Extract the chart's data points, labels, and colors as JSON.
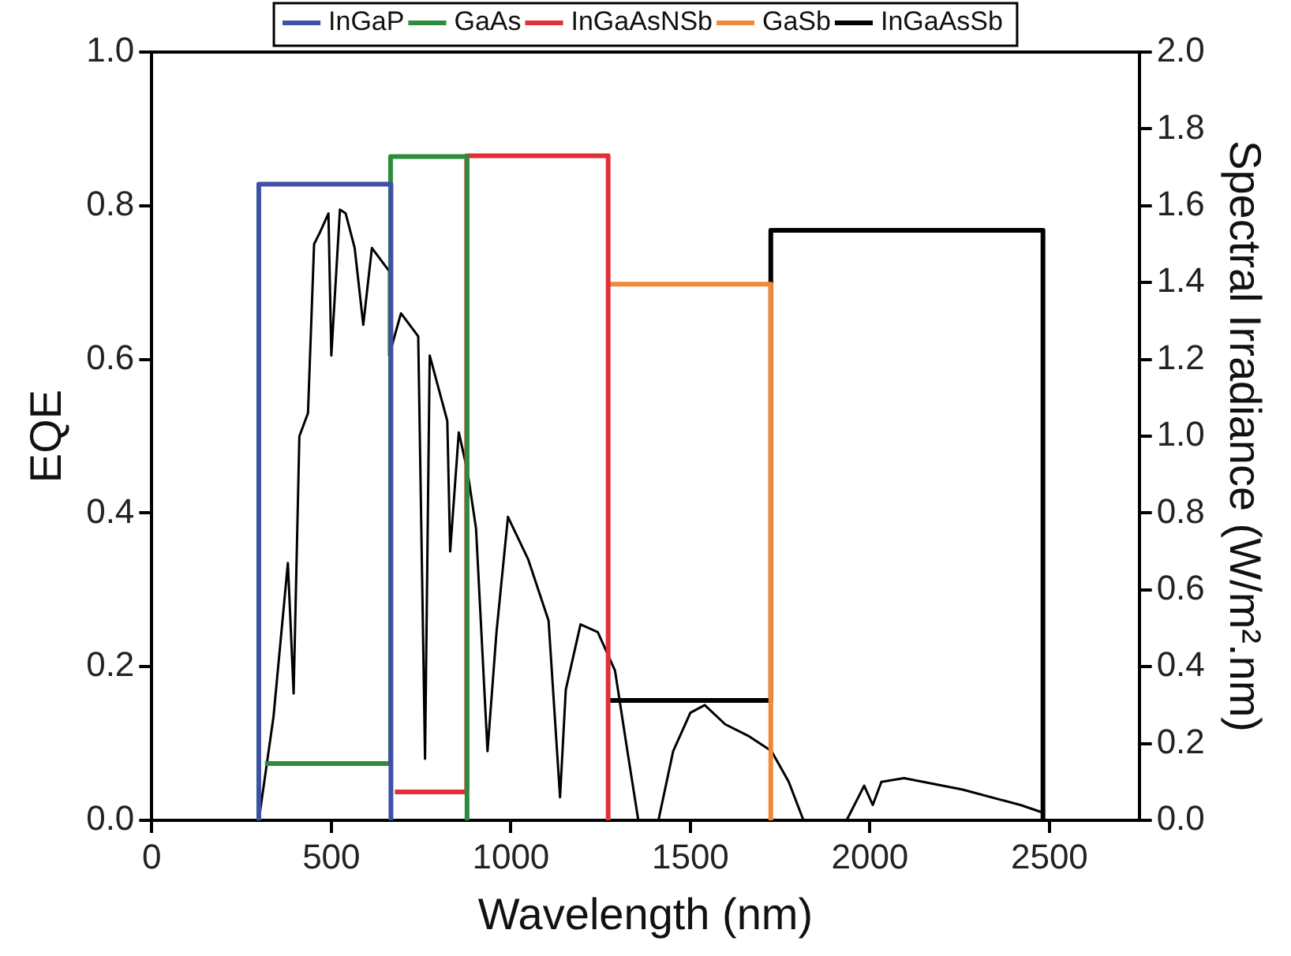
{
  "chart_data": {
    "type": "line",
    "xlabel": "Wavelength (nm)",
    "ylabel": "EQE",
    "y2label": "Spectral Irradiance (W/m².nm)",
    "legend": "top",
    "marker": "none",
    "xlim": [
      0,
      2750
    ],
    "xticks": [
      0,
      500,
      1000,
      1500,
      2000,
      2500
    ],
    "ylim": [
      0,
      1
    ],
    "yticks": [
      {
        "value": 0,
        "label": "0.0"
      },
      0.2,
      0.4,
      0.6,
      0.8,
      {
        "value": 1,
        "label": "1.0"
      }
    ],
    "y2lim": [
      0,
      2
    ],
    "y2ticks": [
      {
        "value": 0,
        "label": "0.0"
      },
      0.2,
      0.4,
      0.6,
      0.8,
      {
        "value": 1,
        "label": "1.0"
      },
      1.2,
      1.4,
      1.6,
      1.8,
      {
        "value": 2,
        "label": "2.0"
      }
    ],
    "series": [
      {
        "axis": "y2",
        "color": "#000000",
        "x": [
          298,
          339,
          379,
          395,
          411,
          435,
          452,
          468,
          492,
          500,
          524,
          540,
          565,
          589,
          613,
          661,
          661,
          694,
          742,
          761,
          774,
          823,
          831,
          855,
          879,
          903,
          935,
          960,
          992,
          1048,
          1105,
          1137,
          1153,
          1194,
          1242,
          1290,
          1323,
          1355,
          1411,
          1452,
          1500,
          1540,
          1597,
          1661,
          1726,
          1774,
          1815,
          1935,
          1984,
          2008,
          2032,
          2095,
          2258,
          2419,
          2482
        ],
        "values": [
          0,
          0.27,
          0.67,
          0.33,
          1.0,
          1.06,
          1.5,
          1.53,
          1.58,
          1.21,
          1.59,
          1.58,
          1.49,
          1.29,
          1.49,
          1.43,
          1.21,
          1.32,
          1.26,
          0.16,
          1.21,
          1.04,
          0.7,
          1.01,
          0.91,
          0.76,
          0.18,
          0.49,
          0.79,
          0.68,
          0.52,
          0.06,
          0.34,
          0.51,
          0.49,
          0.39,
          0.19,
          0,
          0,
          0.18,
          0.28,
          0.3,
          0.25,
          0.22,
          0.18,
          0.1,
          0,
          0,
          0.09,
          0.04,
          0.1,
          0.11,
          0.08,
          0.04,
          0.02
        ]
      },
      {
        "name": "InGaP",
        "color": "#3f51a6",
        "x": [
          298,
          298,
          666,
          666
        ],
        "values": [
          0,
          0.828,
          0.828,
          0
        ]
      },
      {
        "name": "GaAs",
        "color": "#2e8b3e",
        "x": [
          315,
          665,
          665,
          878,
          878
        ],
        "values": [
          0.074,
          0.074,
          0.864,
          0.864,
          0
        ]
      },
      {
        "name": "InGaAsNSb",
        "color": "#e0303a",
        "x": [
          677,
          877,
          877,
          1271,
          1271
        ],
        "values": [
          0.037,
          0.037,
          0.865,
          0.865,
          0
        ]
      },
      {
        "name": "GaSb",
        "color": "#f08a3a",
        "x": [
          1271,
          1724,
          1724
        ],
        "values": [
          0.698,
          0.698,
          0
        ]
      },
      {
        "name": "InGaAsSb",
        "color": "#000000",
        "x": [
          1271,
          1724,
          1724,
          2482,
          2482
        ],
        "values": [
          0.156,
          0.156,
          0.768,
          0.768,
          0
        ]
      }
    ]
  }
}
